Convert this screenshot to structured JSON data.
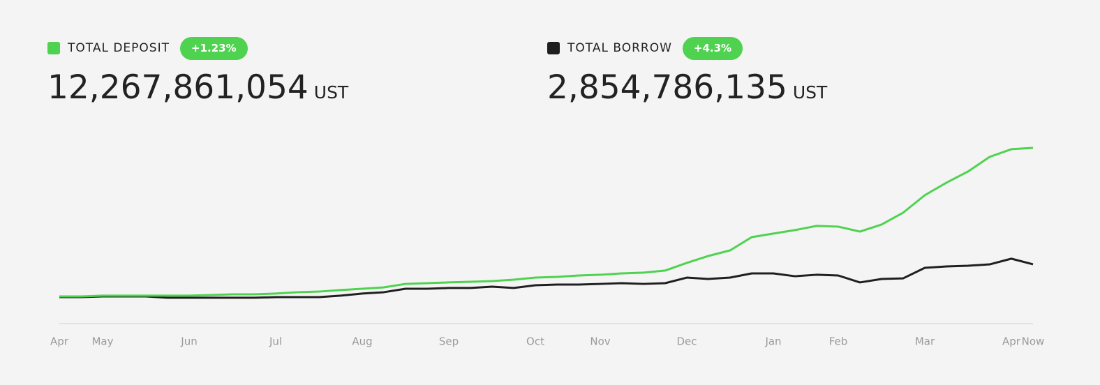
{
  "chart_data": {
    "type": "line",
    "categories": [
      "Apr",
      null,
      "May",
      null,
      null,
      null,
      "Jun",
      null,
      null,
      null,
      "Jul",
      null,
      null,
      null,
      "Aug",
      null,
      null,
      null,
      "Sep",
      null,
      null,
      null,
      "Oct",
      null,
      null,
      "Nov",
      null,
      null,
      null,
      "Dec",
      null,
      null,
      null,
      "Jan",
      null,
      null,
      "Feb",
      null,
      null,
      null,
      "Mar",
      null,
      null,
      null,
      "Apr",
      "Now"
    ],
    "series": [
      {
        "name": "TOTAL DEPOSIT",
        "change": "+1.23%",
        "total": "12,267,861,054",
        "unit": "UST",
        "color": "#4fd24f",
        "values": [
          260000000.0,
          260000000.0,
          320000000.0,
          320000000.0,
          320000000.0,
          320000000.0,
          320000000.0,
          370000000.0,
          430000000.0,
          430000000.0,
          490000000.0,
          600000000.0,
          650000000.0,
          770000000.0,
          880000000.0,
          990000000.0,
          1270000000.0,
          1330000000.0,
          1390000000.0,
          1440000000.0,
          1500000000.0,
          1610000000.0,
          1780000000.0,
          1840000000.0,
          1950000000.0,
          2010000000.0,
          2120000000.0,
          2180000000.0,
          2350000000.0,
          2970000000.0,
          3530000000.0,
          3980000000.0,
          5050000000.0,
          5340000000.0,
          5620000000.0,
          5960000000.0,
          5900000000.0,
          5500000000.0,
          6070000000.0,
          7030000000.0,
          8440000000.0,
          9450000000.0,
          10360000000.0,
          11540000000.0,
          12160000000.0,
          12267861054
        ]
      },
      {
        "name": "TOTAL BORROW",
        "change": "+4.3%",
        "total": "2,854,786,135",
        "unit": "UST",
        "color": "#1f1f1f",
        "values": [
          200000000.0,
          200000000.0,
          260000000.0,
          260000000.0,
          260000000.0,
          150000000.0,
          150000000.0,
          150000000.0,
          150000000.0,
          150000000.0,
          200000000.0,
          200000000.0,
          200000000.0,
          320000000.0,
          490000000.0,
          600000000.0,
          880000000.0,
          880000000.0,
          940000000.0,
          940000000.0,
          1050000000.0,
          940000000.0,
          1160000000.0,
          1220000000.0,
          1220000000.0,
          1270000000.0,
          1330000000.0,
          1270000000.0,
          1330000000.0,
          1780000000.0,
          1670000000.0,
          1780000000.0,
          2120000000.0,
          2120000000.0,
          1890000000.0,
          2010000000.0,
          1950000000.0,
          1390000000.0,
          1670000000.0,
          1720000000.0,
          2570000000.0,
          2680000000.0,
          2740000000.0,
          2850000000.0,
          3310000000.0,
          2854786135
        ]
      }
    ],
    "ylim": [
      -1940000000.0,
      13000000000.0
    ],
    "grid": false
  }
}
